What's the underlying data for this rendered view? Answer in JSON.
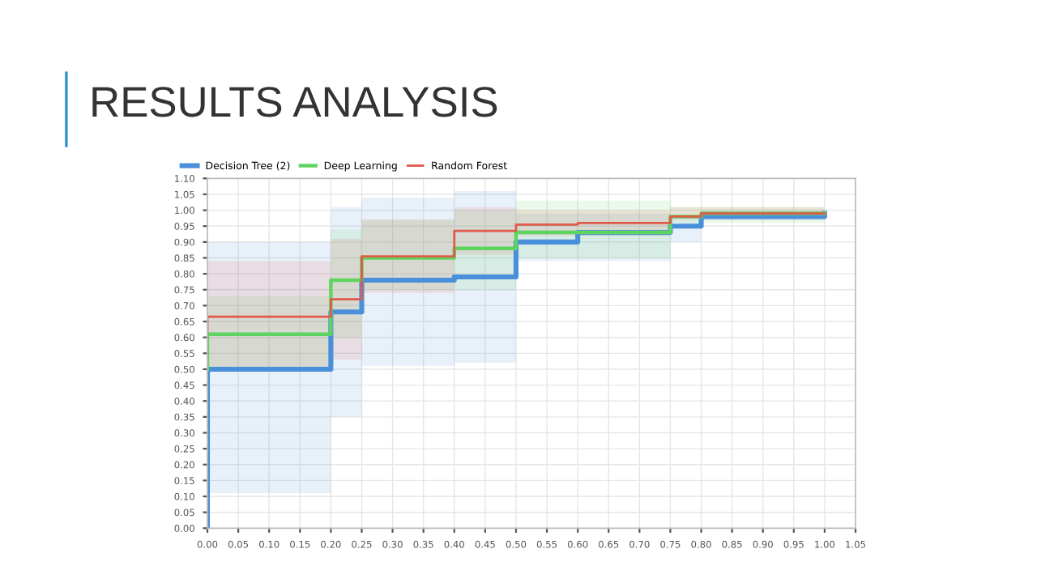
{
  "chart_data": {
    "type": "step",
    "title": "RESULTS ANALYSIS",
    "x": [
      0,
      0,
      0.2,
      0.25,
      0.4,
      0.5,
      0.6,
      0.75,
      0.8,
      1.0
    ],
    "series": [
      {
        "name": "Decision Tree (2)",
        "color": "#4a8fd9",
        "values": [
          0,
          0.5,
          0.68,
          0.78,
          0.79,
          0.9,
          0.93,
          0.95,
          0.98,
          0.99
        ],
        "lower": [
          null,
          0.11,
          0.35,
          0.51,
          0.52,
          0.84,
          0.84,
          0.9,
          0.97,
          0.97
        ],
        "upper": [
          null,
          0.9,
          1.01,
          1.04,
          1.06,
          0.99,
          0.99,
          0.98,
          1.0,
          1.0
        ]
      },
      {
        "name": "Deep Learning",
        "color": "#5fd35f",
        "values": [
          0.5,
          0.61,
          0.78,
          0.85,
          0.88,
          0.93,
          0.93,
          0.98,
          0.99,
          0.99
        ],
        "lower": [
          null,
          0.5,
          0.6,
          0.75,
          0.75,
          0.85,
          0.85,
          0.96,
          0.96,
          0.96
        ],
        "upper": [
          null,
          0.73,
          0.94,
          0.97,
          1.0,
          1.03,
          1.03,
          1.01,
          1.01,
          1.01
        ]
      },
      {
        "name": "Random Forest",
        "color": "#e05a4a",
        "values": [
          0.61,
          0.665,
          0.72,
          0.855,
          0.935,
          0.955,
          0.96,
          0.98,
          0.99,
          0.99
        ],
        "lower": [
          null,
          0.5,
          0.53,
          0.74,
          0.86,
          0.92,
          0.92,
          0.97,
          0.97,
          0.97
        ],
        "upper": [
          null,
          0.84,
          0.91,
          0.97,
          1.01,
          1.0,
          1.0,
          1.01,
          1.01,
          1.01
        ]
      }
    ],
    "xlim": [
      0,
      1.05
    ],
    "ylim": [
      0,
      1.1
    ],
    "xticks": [
      {
        "value": 0,
        "label": "0.00"
      },
      {
        "value": 0.05,
        "label": "0.05"
      },
      {
        "value": 0.1,
        "label": "0.10"
      },
      {
        "value": 0.15,
        "label": "0.15"
      },
      {
        "value": 0.2,
        "label": "0.20"
      },
      {
        "value": 0.25,
        "label": "0.25"
      },
      {
        "value": 0.3,
        "label": "0.30"
      },
      {
        "value": 0.35,
        "label": "0.35"
      },
      {
        "value": 0.4,
        "label": "0.40"
      },
      {
        "value": 0.45,
        "label": "0.45"
      },
      {
        "value": 0.5,
        "label": "0.50"
      },
      {
        "value": 0.55,
        "label": "0.55"
      },
      {
        "value": 0.6,
        "label": "0.60"
      },
      {
        "value": 0.65,
        "label": "0.65"
      },
      {
        "value": 0.7,
        "label": "0.70"
      },
      {
        "value": 0.75,
        "label": "0.75"
      },
      {
        "value": 0.8,
        "label": "0.80"
      },
      {
        "value": 0.85,
        "label": "0.85"
      },
      {
        "value": 0.9,
        "label": "0.90"
      },
      {
        "value": 0.95,
        "label": "0.95"
      },
      {
        "value": 1.0,
        "label": "1.00"
      },
      {
        "value": 1.05,
        "label": "1.05"
      }
    ],
    "yticks": [
      {
        "value": 0,
        "label": "0.00"
      },
      {
        "value": 0.05,
        "label": "0.05"
      },
      {
        "value": 0.1,
        "label": "0.10"
      },
      {
        "value": 0.15,
        "label": "0.15"
      },
      {
        "value": 0.2,
        "label": "0.20"
      },
      {
        "value": 0.25,
        "label": "0.25"
      },
      {
        "value": 0.3,
        "label": "0.30"
      },
      {
        "value": 0.35,
        "label": "0.35"
      },
      {
        "value": 0.4,
        "label": "0.40"
      },
      {
        "value": 0.45,
        "label": "0.45"
      },
      {
        "value": 0.5,
        "label": "0.50"
      },
      {
        "value": 0.55,
        "label": "0.55"
      },
      {
        "value": 0.6,
        "label": "0.60"
      },
      {
        "value": 0.65,
        "label": "0.65"
      },
      {
        "value": 0.7,
        "label": "0.70"
      },
      {
        "value": 0.75,
        "label": "0.75"
      },
      {
        "value": 0.8,
        "label": "0.80"
      },
      {
        "value": 0.85,
        "label": "0.85"
      },
      {
        "value": 0.9,
        "label": "0.90"
      },
      {
        "value": 0.95,
        "label": "0.95"
      },
      {
        "value": 1.0,
        "label": "1.00"
      },
      {
        "value": 1.05,
        "label": "1.05"
      },
      {
        "value": 1.1,
        "label": "1.10"
      }
    ],
    "grid": true,
    "legend": "top left"
  }
}
